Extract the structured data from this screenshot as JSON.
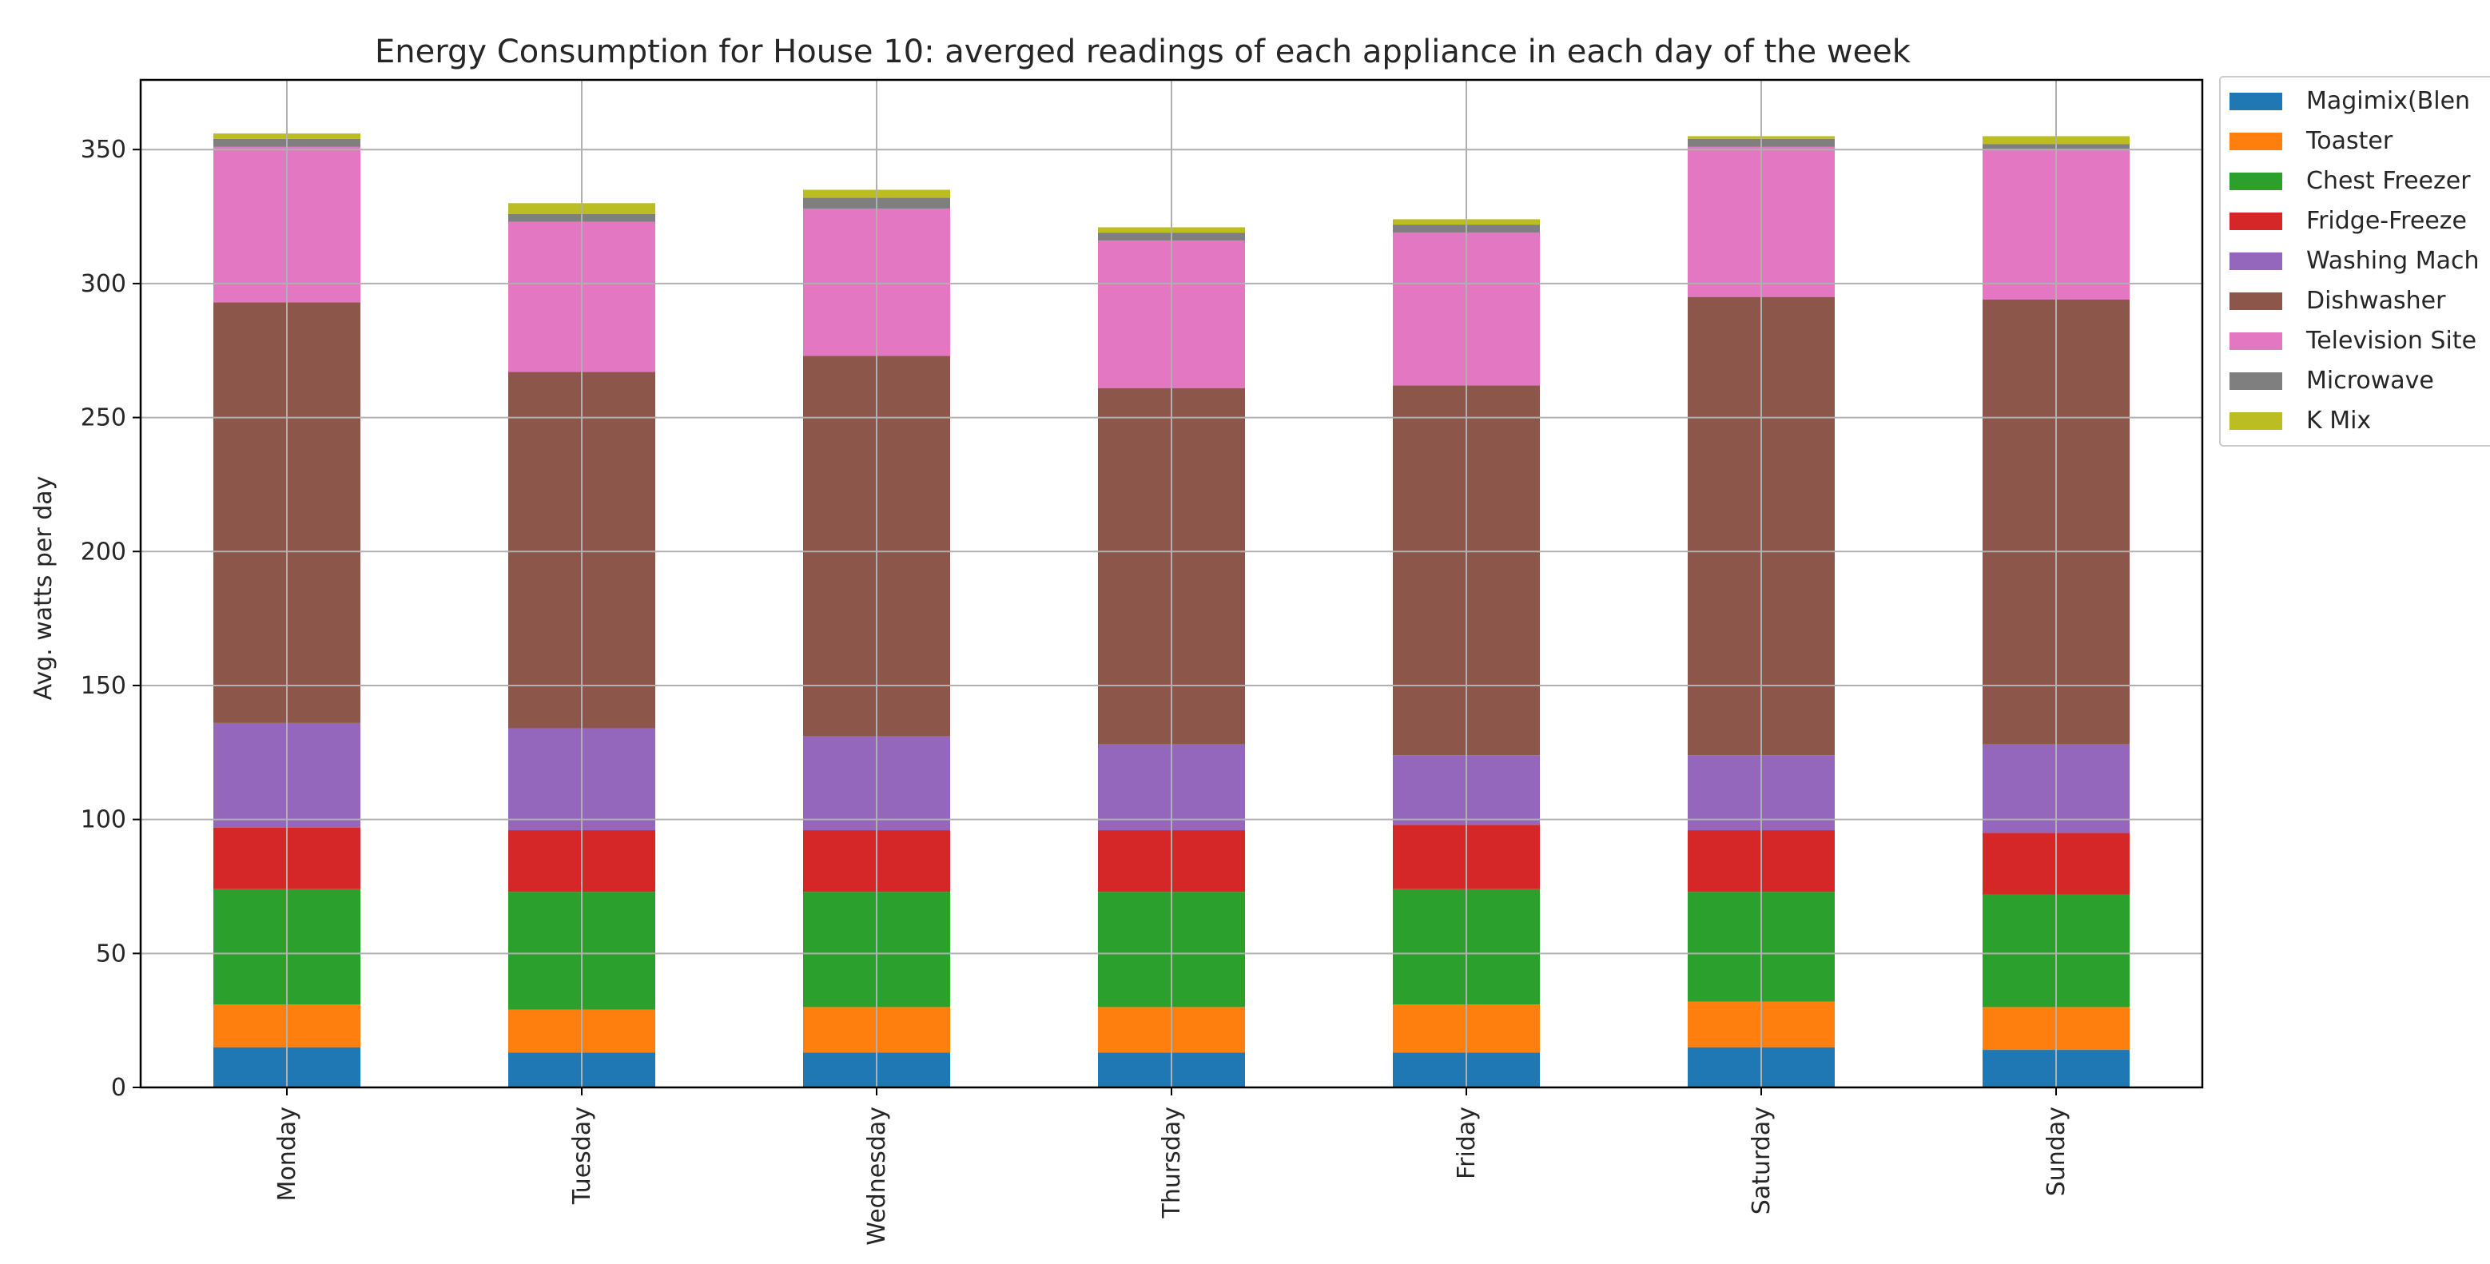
{
  "chart_data": {
    "type": "bar",
    "stacked": true,
    "title": "Energy Consumption for House 10: averged readings of each appliance in each day of the week",
    "xlabel": "",
    "ylabel": "Avg. watts per day",
    "ylim": [
      0,
      376
    ],
    "yticks": [
      0,
      50,
      100,
      150,
      200,
      250,
      300,
      350
    ],
    "grid": true,
    "legend_position": "outside-top-right",
    "categories": [
      "Monday",
      "Tuesday",
      "Wednesday",
      "Thursday",
      "Friday",
      "Saturday",
      "Sunday"
    ],
    "series": [
      {
        "name": "Magimix(Blen",
        "color": "#1f77b4",
        "values": [
          15,
          13,
          13,
          13,
          13,
          15,
          14
        ]
      },
      {
        "name": "Toaster",
        "color": "#ff7f0e",
        "values": [
          16,
          16,
          17,
          17,
          18,
          17,
          16
        ]
      },
      {
        "name": "Chest Freezer",
        "color": "#2ca02c",
        "values": [
          43,
          44,
          43,
          43,
          43,
          41,
          42
        ]
      },
      {
        "name": "Fridge-Freeze",
        "color": "#d62728",
        "values": [
          23,
          23,
          23,
          23,
          24,
          23,
          23
        ]
      },
      {
        "name": "Washing Mach",
        "color": "#9467bd",
        "values": [
          39,
          38,
          35,
          32,
          26,
          28,
          33
        ]
      },
      {
        "name": "Dishwasher",
        "color": "#8c564b",
        "values": [
          157,
          133,
          142,
          133,
          138,
          171,
          166
        ]
      },
      {
        "name": "Television Site",
        "color": "#e377c2",
        "values": [
          58,
          56,
          55,
          55,
          57,
          56,
          56
        ]
      },
      {
        "name": "Microwave",
        "color": "#7f7f7f",
        "values": [
          3,
          3,
          4,
          3,
          3,
          3,
          2
        ]
      },
      {
        "name": "K Mix",
        "color": "#bcbd22",
        "values": [
          2,
          4,
          3,
          2,
          2,
          1,
          3
        ]
      }
    ]
  }
}
